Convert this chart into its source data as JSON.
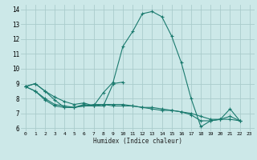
{
  "xlabel": "Humidex (Indice chaleur)",
  "bg_color": "#cce8e8",
  "grid_color": "#aacccc",
  "line_color": "#1a7a6e",
  "xlim": [
    -0.5,
    23.5
  ],
  "ylim": [
    5.8,
    14.3
  ],
  "xtick_vals": [
    0,
    1,
    2,
    3,
    4,
    5,
    6,
    7,
    8,
    9,
    10,
    11,
    12,
    13,
    14,
    15,
    16,
    17,
    18,
    19,
    20,
    21,
    22,
    23
  ],
  "xtick_labels": [
    "0",
    "1",
    "2",
    "3",
    "4",
    "5",
    "6",
    "7",
    "8",
    "9",
    "10",
    "11",
    "12",
    "13",
    "14",
    "15",
    "16",
    "17",
    "18",
    "19",
    "20",
    "21",
    "22",
    "23"
  ],
  "ytick_vals": [
    6,
    7,
    8,
    9,
    10,
    11,
    12,
    13,
    14
  ],
  "ytick_labels": [
    "6",
    "7",
    "8",
    "9",
    "10",
    "11",
    "12",
    "13",
    "14"
  ],
  "series": [
    [
      8.8,
      9.0,
      8.5,
      7.9,
      7.4,
      7.4,
      7.6,
      7.5,
      8.4,
      9.1,
      11.5,
      12.5,
      13.7,
      13.85,
      13.5,
      12.2,
      10.4,
      8.0,
      6.1,
      6.5,
      6.6,
      7.3,
      6.5,
      null
    ],
    [
      8.8,
      9.0,
      8.5,
      8.1,
      7.8,
      7.6,
      7.7,
      7.5,
      7.5,
      9.0,
      9.1,
      null,
      null,
      null,
      null,
      null,
      null,
      null,
      null,
      null,
      null,
      null,
      null,
      null
    ],
    [
      8.8,
      8.5,
      8.0,
      7.6,
      7.5,
      7.4,
      7.5,
      7.5,
      7.6,
      7.6,
      7.6,
      7.5,
      7.4,
      7.3,
      7.2,
      7.2,
      7.1,
      7.0,
      6.8,
      6.6,
      6.6,
      6.6,
      6.5,
      null
    ],
    [
      8.8,
      8.5,
      7.9,
      7.5,
      7.4,
      7.4,
      7.5,
      7.6,
      7.6,
      7.5,
      7.5,
      7.5,
      7.4,
      7.4,
      7.3,
      7.2,
      7.1,
      6.9,
      6.5,
      6.5,
      6.6,
      6.8,
      6.5,
      null
    ]
  ]
}
